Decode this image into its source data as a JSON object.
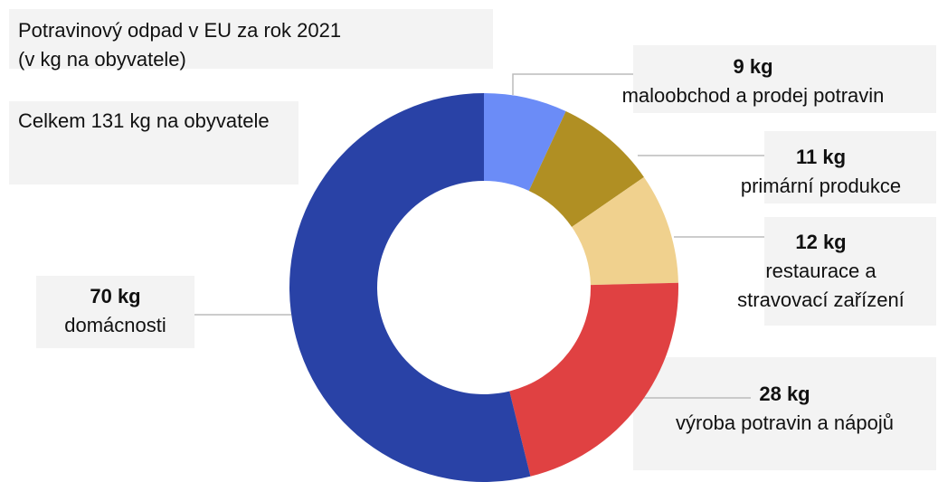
{
  "chart_data": {
    "type": "donut",
    "title": "Potravinový odpad v EU za rok 2021",
    "subtitle": "(v kg na obyvatele)",
    "annotation": "Celkem 131 kg na obyvatele",
    "categories": [
      "maloobchod a prodej potravin",
      "primární produkce",
      "restaurace a stravovací zařízení",
      "výroba potravin a nápojů",
      "domácnosti"
    ],
    "values": [
      9,
      11,
      12,
      28,
      70
    ],
    "value_labels": [
      "9 kg",
      "11 kg",
      "12 kg",
      "28 kg",
      "70 kg"
    ],
    "colors": [
      "#6b8cf7",
      "#b08f23",
      "#f0d18e",
      "#e04142",
      "#2942a6"
    ]
  }
}
